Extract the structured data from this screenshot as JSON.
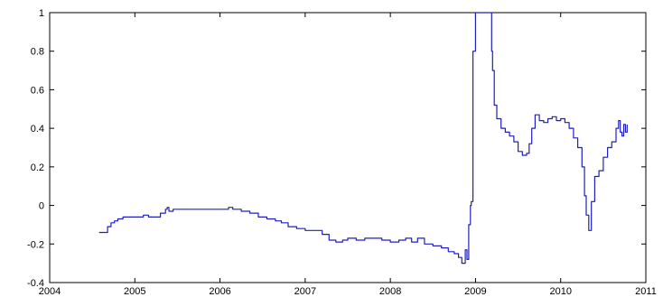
{
  "chart_data": {
    "type": "line",
    "title": "",
    "xlabel": "",
    "ylabel": "",
    "xlim": [
      2004,
      2011
    ],
    "ylim": [
      -0.4,
      1
    ],
    "grid": false,
    "x_ticks": [
      2004,
      2005,
      2006,
      2007,
      2008,
      2009,
      2010,
      2011
    ],
    "x_tick_labels": [
      "2004",
      "2005",
      "2006",
      "2007",
      "2008",
      "2009",
      "2010",
      "2011"
    ],
    "y_ticks": [
      -0.4,
      -0.2,
      0,
      0.2,
      0.4,
      0.6,
      0.8,
      1
    ],
    "y_tick_labels": [
      "-0.4",
      "-0.2",
      "0",
      "0.2",
      "0.4",
      "0.6",
      "0.8",
      "1"
    ],
    "series": [
      {
        "color": "#1f1fbf",
        "x": [
          2004.58,
          2004.64,
          2004.68,
          2004.72,
          2004.76,
          2004.8,
          2004.86,
          2004.92,
          2005.0,
          2005.1,
          2005.16,
          2005.22,
          2005.3,
          2005.36,
          2005.38,
          2005.4,
          2005.45,
          2005.6,
          2005.8,
          2006.0,
          2006.1,
          2006.15,
          2006.25,
          2006.35,
          2006.45,
          2006.55,
          2006.65,
          2006.72,
          2006.8,
          2006.9,
          2007.0,
          2007.1,
          2007.2,
          2007.28,
          2007.36,
          2007.44,
          2007.5,
          2007.6,
          2007.7,
          2007.8,
          2007.9,
          2008.0,
          2008.1,
          2008.18,
          2008.25,
          2008.32,
          2008.4,
          2008.5,
          2008.6,
          2008.68,
          2008.75,
          2008.8,
          2008.84,
          2008.88,
          2008.9,
          2008.92,
          2008.94,
          2008.95,
          2008.97,
          2009.0,
          2009.03,
          2009.06,
          2009.1,
          2009.14,
          2009.17,
          2009.19,
          2009.2,
          2009.22,
          2009.25,
          2009.3,
          2009.35,
          2009.4,
          2009.45,
          2009.5,
          2009.55,
          2009.6,
          2009.63,
          2009.66,
          2009.7,
          2009.75,
          2009.8,
          2009.85,
          2009.9,
          2009.95,
          2010.0,
          2010.05,
          2010.1,
          2010.15,
          2010.2,
          2010.25,
          2010.28,
          2010.3,
          2010.33,
          2010.36,
          2010.4,
          2010.45,
          2010.5,
          2010.55,
          2010.6,
          2010.65,
          2010.68,
          2010.7,
          2010.72,
          2010.74,
          2010.76,
          2010.78
        ],
        "y": [
          -0.14,
          -0.14,
          -0.11,
          -0.09,
          -0.08,
          -0.07,
          -0.06,
          -0.06,
          -0.06,
          -0.05,
          -0.06,
          -0.06,
          -0.04,
          -0.02,
          -0.01,
          -0.03,
          -0.02,
          -0.02,
          -0.02,
          -0.02,
          -0.01,
          -0.02,
          -0.03,
          -0.04,
          -0.06,
          -0.07,
          -0.08,
          -0.09,
          -0.11,
          -0.12,
          -0.13,
          -0.13,
          -0.15,
          -0.18,
          -0.19,
          -0.18,
          -0.17,
          -0.18,
          -0.17,
          -0.17,
          -0.18,
          -0.19,
          -0.18,
          -0.17,
          -0.19,
          -0.17,
          -0.2,
          -0.21,
          -0.22,
          -0.24,
          -0.25,
          -0.27,
          -0.3,
          -0.23,
          -0.28,
          -0.1,
          0.0,
          0.02,
          0.8,
          1.0,
          1.0,
          1.0,
          1.0,
          1.0,
          1.0,
          0.8,
          0.7,
          0.52,
          0.45,
          0.4,
          0.38,
          0.36,
          0.33,
          0.28,
          0.26,
          0.27,
          0.32,
          0.4,
          0.47,
          0.44,
          0.43,
          0.45,
          0.46,
          0.44,
          0.45,
          0.43,
          0.4,
          0.35,
          0.3,
          0.2,
          0.05,
          -0.05,
          -0.13,
          0.02,
          0.15,
          0.18,
          0.25,
          0.3,
          0.33,
          0.4,
          0.44,
          0.38,
          0.36,
          0.42,
          0.38,
          0.42
        ]
      }
    ]
  }
}
